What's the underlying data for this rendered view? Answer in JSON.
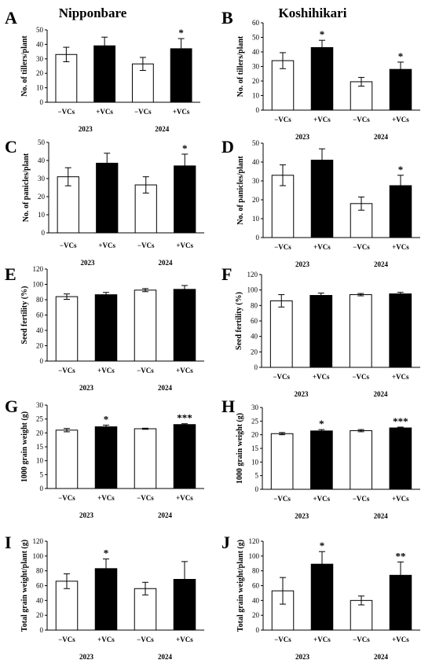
{
  "figure": {
    "cultivars": [
      "Nipponbare",
      "Koshihikari"
    ]
  },
  "chart_data": [
    {
      "panel": "A",
      "type": "bar",
      "categories": [
        "−VCs",
        "+VCs",
        "−VCs",
        "+VCs"
      ],
      "groups": [
        "2023",
        "2024"
      ],
      "ylabel": "No. of tillers/plant",
      "ylim": [
        0,
        50
      ],
      "yticks": [
        0,
        10,
        20,
        30,
        40,
        50
      ],
      "values": [
        33,
        39,
        26.5,
        37
      ],
      "errors": [
        5,
        6,
        4.5,
        7
      ],
      "fill": [
        "#ffffff",
        "#000000",
        "#ffffff",
        "#000000"
      ],
      "significance": [
        "",
        "",
        "",
        "*"
      ]
    },
    {
      "panel": "B",
      "type": "bar",
      "categories": [
        "−VCs",
        "+VCs",
        "−VCs",
        "+VCs"
      ],
      "groups": [
        "2023",
        "2024"
      ],
      "ylabel": "No. of tillers/plant",
      "ylim": [
        0,
        60
      ],
      "yticks": [
        0,
        10,
        20,
        30,
        40,
        50,
        60
      ],
      "values": [
        34,
        43,
        19.5,
        28
      ],
      "errors": [
        5.5,
        5,
        3,
        5
      ],
      "fill": [
        "#ffffff",
        "#000000",
        "#ffffff",
        "#000000"
      ],
      "significance": [
        "",
        "*",
        "",
        "*"
      ]
    },
    {
      "panel": "C",
      "type": "bar",
      "categories": [
        "−VCs",
        "+VCs",
        "−VCs",
        "+VCs"
      ],
      "groups": [
        "2023",
        "2024"
      ],
      "ylabel": "No. of panicles/plant",
      "ylim": [
        0,
        50
      ],
      "yticks": [
        0,
        10,
        20,
        30,
        40,
        50
      ],
      "values": [
        31,
        38.5,
        26.5,
        37
      ],
      "errors": [
        5,
        5.5,
        4.5,
        6.5
      ],
      "fill": [
        "#ffffff",
        "#000000",
        "#ffffff",
        "#000000"
      ],
      "significance": [
        "",
        "",
        "",
        "*"
      ]
    },
    {
      "panel": "D",
      "type": "bar",
      "categories": [
        "−VCs",
        "+VCs",
        "−VCs",
        "+VCs"
      ],
      "groups": [
        "2023",
        "2024"
      ],
      "ylabel": "No. of panicles/plant",
      "ylim": [
        0,
        50
      ],
      "yticks": [
        0,
        10,
        20,
        30,
        40,
        50
      ],
      "values": [
        33,
        41,
        18,
        27.5
      ],
      "errors": [
        5.5,
        6,
        3.5,
        5.5
      ],
      "fill": [
        "#ffffff",
        "#000000",
        "#ffffff",
        "#000000"
      ],
      "significance": [
        "",
        "",
        "",
        "*"
      ]
    },
    {
      "panel": "E",
      "type": "bar",
      "categories": [
        "−VCs",
        "+VCs",
        "−VCs",
        "+VCs"
      ],
      "groups": [
        "2023",
        "2024"
      ],
      "ylabel": "Seed fertility (%)",
      "ylim": [
        0,
        120
      ],
      "yticks": [
        0,
        20,
        40,
        60,
        80,
        100,
        120
      ],
      "values": [
        84,
        86.5,
        92.5,
        93.5
      ],
      "errors": [
        3.5,
        3,
        2,
        5
      ],
      "fill": [
        "#ffffff",
        "#000000",
        "#ffffff",
        "#000000"
      ],
      "significance": [
        "",
        "",
        "",
        ""
      ]
    },
    {
      "panel": "F",
      "type": "bar",
      "categories": [
        "−VCs",
        "+VCs",
        "−VCs",
        "+VCs"
      ],
      "groups": [
        "2023",
        "2024"
      ],
      "ylabel": "Seed fertility (%)",
      "ylim": [
        0,
        120
      ],
      "yticks": [
        0,
        20,
        40,
        60,
        80,
        100,
        120
      ],
      "values": [
        86,
        93,
        94,
        95
      ],
      "errors": [
        8,
        3,
        1.5,
        2
      ],
      "fill": [
        "#ffffff",
        "#000000",
        "#ffffff",
        "#000000"
      ],
      "significance": [
        "",
        "",
        "",
        ""
      ]
    },
    {
      "panel": "G",
      "type": "bar",
      "categories": [
        "−VCs",
        "+VCs",
        "−VCs",
        "+VCs"
      ],
      "groups": [
        "2023",
        "2024"
      ],
      "ylabel": "1000 grain weight (g)",
      "ylim": [
        0,
        30
      ],
      "yticks": [
        0,
        5,
        10,
        15,
        20,
        25,
        30
      ],
      "values": [
        21,
        22.2,
        21.5,
        23
      ],
      "errors": [
        0.6,
        0.6,
        0.2,
        0.3
      ],
      "fill": [
        "#ffffff",
        "#000000",
        "#ffffff",
        "#000000"
      ],
      "significance": [
        "",
        "*",
        "",
        "***"
      ]
    },
    {
      "panel": "H",
      "type": "bar",
      "categories": [
        "−VCs",
        "+VCs",
        "−VCs",
        "+VCs"
      ],
      "groups": [
        "2023",
        "2024"
      ],
      "ylabel": "1000 grain weight (g)",
      "ylim": [
        0,
        30
      ],
      "yticks": [
        0,
        5,
        10,
        15,
        20,
        25,
        30
      ],
      "values": [
        20.4,
        21.4,
        21.5,
        22.5
      ],
      "errors": [
        0.4,
        0.5,
        0.4,
        0.3
      ],
      "fill": [
        "#ffffff",
        "#000000",
        "#ffffff",
        "#000000"
      ],
      "significance": [
        "",
        "*",
        "",
        "***"
      ]
    },
    {
      "panel": "I",
      "type": "bar",
      "categories": [
        "−VCs",
        "+VCs",
        "−VCs",
        "+VCs"
      ],
      "groups": [
        "2023",
        "2024"
      ],
      "ylabel": "Total grain weight/plant (g)",
      "ylim": [
        0,
        120
      ],
      "yticks": [
        0,
        20,
        40,
        60,
        80,
        100,
        120
      ],
      "values": [
        66,
        83,
        56,
        68.5
      ],
      "errors": [
        10,
        13,
        8.5,
        24
      ],
      "fill": [
        "#ffffff",
        "#000000",
        "#ffffff",
        "#000000"
      ],
      "significance": [
        "",
        "*",
        "",
        ""
      ]
    },
    {
      "panel": "J",
      "type": "bar",
      "categories": [
        "−VCs",
        "+VCs",
        "−VCs",
        "+VCs"
      ],
      "groups": [
        "2023",
        "2024"
      ],
      "ylabel": "Total grain weight/plant (g)",
      "ylim": [
        0,
        120
      ],
      "yticks": [
        0,
        20,
        40,
        60,
        80,
        100,
        120
      ],
      "values": [
        53,
        89,
        40,
        74
      ],
      "errors": [
        18,
        17,
        6,
        18
      ],
      "fill": [
        "#ffffff",
        "#000000",
        "#ffffff",
        "#000000"
      ],
      "significance": [
        "",
        "*",
        "",
        "**"
      ]
    }
  ]
}
